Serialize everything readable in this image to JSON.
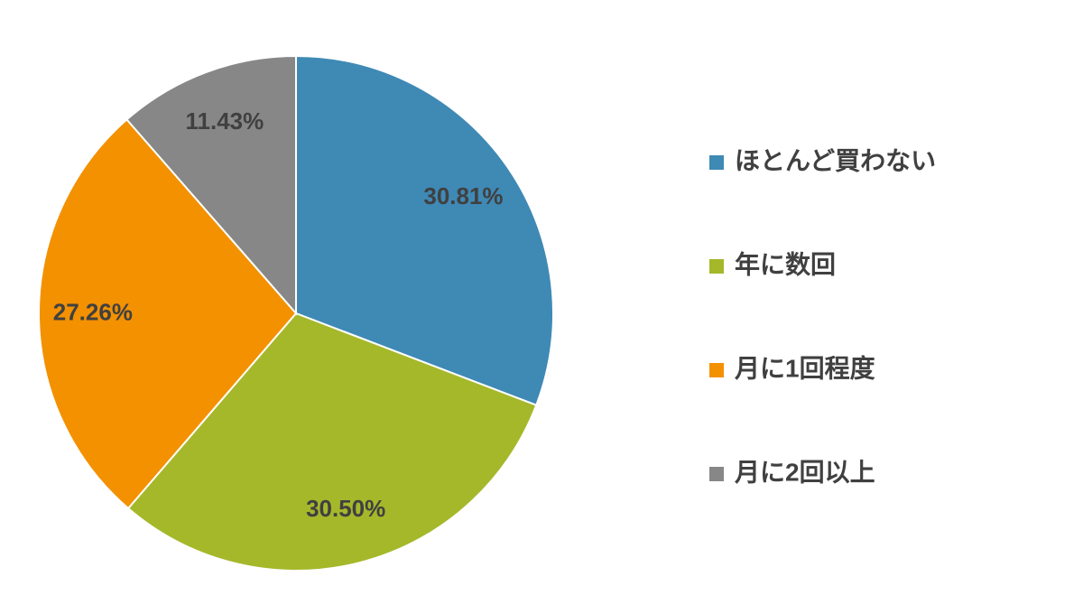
{
  "chart_data": {
    "type": "pie",
    "categories": [
      "ほとんど買わない",
      "年に数回",
      "月に1回程度",
      "月に2回以上"
    ],
    "values": [
      30.81,
      30.5,
      27.26,
      11.43
    ],
    "value_labels": [
      "30.81%",
      "30.50%",
      "27.26%",
      "11.43%"
    ],
    "colors": [
      "#3f89b5",
      "#a5b82a",
      "#f39100",
      "#878787"
    ],
    "legend": "right"
  }
}
